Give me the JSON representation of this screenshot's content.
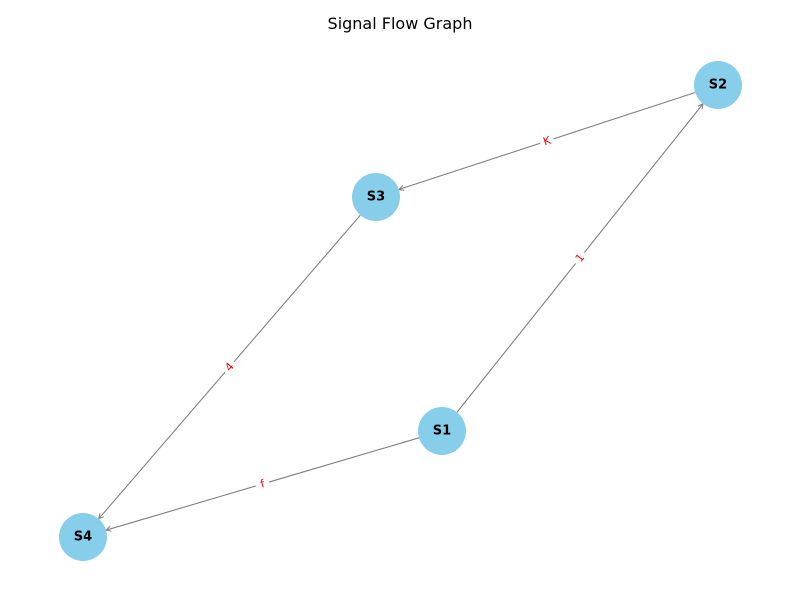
{
  "title": "Signal Flow Graph",
  "colors": {
    "node_fill": "#87CEEB",
    "edge_stroke": "#808080",
    "edge_label": "#FF0000",
    "label_bg": "#FFFFFF"
  },
  "nodes": [
    {
      "id": "S1",
      "label": "S1"
    },
    {
      "id": "S2",
      "label": "S2"
    },
    {
      "id": "S3",
      "label": "S3"
    },
    {
      "id": "S4",
      "label": "S4"
    }
  ],
  "edges": [
    {
      "from": "S1",
      "to": "S2",
      "label": "1"
    },
    {
      "from": "S2",
      "to": "S3",
      "label": "K"
    },
    {
      "from": "S3",
      "to": "S4",
      "label": "4"
    },
    {
      "from": "S1",
      "to": "S4",
      "label": "f"
    }
  ]
}
